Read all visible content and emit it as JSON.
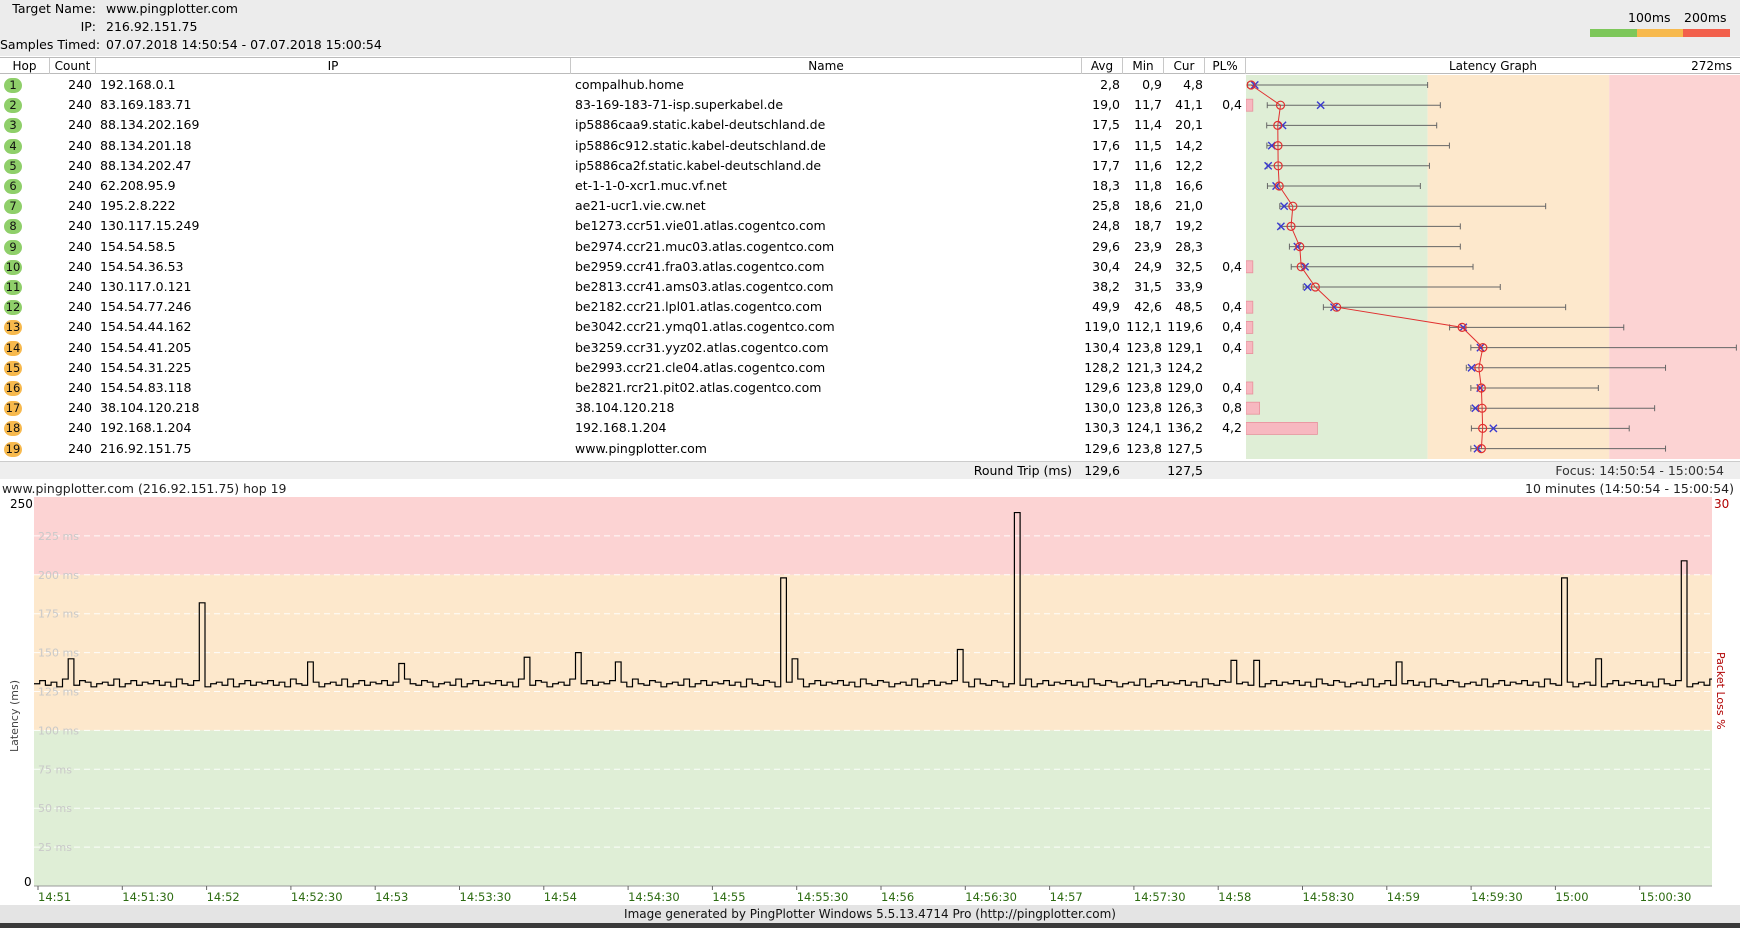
{
  "header": {
    "target_label": "Target Name:",
    "target_value": "www.pingplotter.com",
    "ip_label": "IP:",
    "ip_value": "216.92.151.75",
    "samples_label": "Samples Timed:",
    "samples_value": "07.07.2018 14:50:54 - 07.07.2018 15:00:54",
    "legend": {
      "label_100": "100ms",
      "label_200": "200ms",
      "colors": [
        "#7dc75a",
        "#f7b94d",
        "#f2604c"
      ]
    }
  },
  "table": {
    "columns": {
      "hop": "Hop",
      "count": "Count",
      "ip": "IP",
      "name": "Name",
      "avg": "Avg",
      "min": "Min",
      "cur": "Cur",
      "pl": "PL%",
      "graph": "Latency Graph"
    },
    "graph_max_label": "272ms",
    "graph_max_ms": 272,
    "graph_zones": {
      "green_until_ms": 100,
      "orange_until_ms": 200,
      "green": "#dfeed6",
      "orange": "#fde8cc",
      "red": "#fcd3d3"
    },
    "hops": [
      {
        "hop": "1",
        "count": "240",
        "ip": "192.168.0.1",
        "name": "compalhub.home",
        "avg": "2,8",
        "min": "0,9",
        "cur": "4,8",
        "pl": "",
        "max_ms": 100,
        "status": "green"
      },
      {
        "hop": "2",
        "count": "240",
        "ip": "83.169.183.71",
        "name": "83-169-183-71-isp.superkabel.de",
        "avg": "19,0",
        "min": "11,7",
        "cur": "41,1",
        "pl": "0,4",
        "max_ms": 107,
        "status": "green"
      },
      {
        "hop": "3",
        "count": "240",
        "ip": "88.134.202.169",
        "name": "ip5886caa9.static.kabel-deutschland.de",
        "avg": "17,5",
        "min": "11,4",
        "cur": "20,1",
        "pl": "",
        "max_ms": 105,
        "status": "green"
      },
      {
        "hop": "4",
        "count": "240",
        "ip": "88.134.201.18",
        "name": "ip5886c912.static.kabel-deutschland.de",
        "avg": "17,6",
        "min": "11,5",
        "cur": "14,2",
        "pl": "",
        "max_ms": 112,
        "status": "green"
      },
      {
        "hop": "5",
        "count": "240",
        "ip": "88.134.202.47",
        "name": "ip5886ca2f.static.kabel-deutschland.de",
        "avg": "17,7",
        "min": "11,6",
        "cur": "12,2",
        "pl": "",
        "max_ms": 101,
        "status": "green"
      },
      {
        "hop": "6",
        "count": "240",
        "ip": "62.208.95.9",
        "name": "et-1-1-0-xcr1.muc.vf.net",
        "avg": "18,3",
        "min": "11,8",
        "cur": "16,6",
        "pl": "",
        "max_ms": 96,
        "status": "green"
      },
      {
        "hop": "7",
        "count": "240",
        "ip": "195.2.8.222",
        "name": "ae21-ucr1.vie.cw.net",
        "avg": "25,8",
        "min": "18,6",
        "cur": "21,0",
        "pl": "",
        "max_ms": 165,
        "status": "green"
      },
      {
        "hop": "8",
        "count": "240",
        "ip": "130.117.15.249",
        "name": "be1273.ccr51.vie01.atlas.cogentco.com",
        "avg": "24,8",
        "min": "18,7",
        "cur": "19,2",
        "pl": "",
        "max_ms": 118,
        "status": "green"
      },
      {
        "hop": "9",
        "count": "240",
        "ip": "154.54.58.5",
        "name": "be2974.ccr21.muc03.atlas.cogentco.com",
        "avg": "29,6",
        "min": "23,9",
        "cur": "28,3",
        "pl": "",
        "max_ms": 118,
        "status": "green"
      },
      {
        "hop": "10",
        "count": "240",
        "ip": "154.54.36.53",
        "name": "be2959.ccr41.fra03.atlas.cogentco.com",
        "avg": "30,4",
        "min": "24,9",
        "cur": "32,5",
        "pl": "0,4",
        "max_ms": 125,
        "status": "green"
      },
      {
        "hop": "11",
        "count": "240",
        "ip": "130.117.0.121",
        "name": "be2813.ccr41.ams03.atlas.cogentco.com",
        "avg": "38,2",
        "min": "31,5",
        "cur": "33,9",
        "pl": "",
        "max_ms": 140,
        "status": "green"
      },
      {
        "hop": "12",
        "count": "240",
        "ip": "154.54.77.246",
        "name": "be2182.ccr21.lpl01.atlas.cogentco.com",
        "avg": "49,9",
        "min": "42,6",
        "cur": "48,5",
        "pl": "0,4",
        "max_ms": 176,
        "status": "green"
      },
      {
        "hop": "13",
        "count": "240",
        "ip": "154.54.44.162",
        "name": "be3042.ccr21.ymq01.atlas.cogentco.com",
        "avg": "119,0",
        "min": "112,1",
        "cur": "119,6",
        "pl": "0,4",
        "max_ms": 208,
        "status": "orange"
      },
      {
        "hop": "14",
        "count": "240",
        "ip": "154.54.41.205",
        "name": "be3259.ccr31.yyz02.atlas.cogentco.com",
        "avg": "130,4",
        "min": "123,8",
        "cur": "129,1",
        "pl": "0,4",
        "max_ms": 270,
        "status": "orange"
      },
      {
        "hop": "15",
        "count": "240",
        "ip": "154.54.31.225",
        "name": "be2993.ccr21.cle04.atlas.cogentco.com",
        "avg": "128,2",
        "min": "121,3",
        "cur": "124,2",
        "pl": "",
        "max_ms": 231,
        "status": "orange"
      },
      {
        "hop": "16",
        "count": "240",
        "ip": "154.54.83.118",
        "name": "be2821.rcr21.pit02.atlas.cogentco.com",
        "avg": "129,6",
        "min": "123,8",
        "cur": "129,0",
        "pl": "0,4",
        "max_ms": 194,
        "status": "orange"
      },
      {
        "hop": "17",
        "count": "240",
        "ip": "38.104.120.218",
        "name": "38.104.120.218",
        "avg": "130,0",
        "min": "123,8",
        "cur": "126,3",
        "pl": "0,8",
        "max_ms": 225,
        "status": "orange"
      },
      {
        "hop": "18",
        "count": "240",
        "ip": "192.168.1.204",
        "name": "192.168.1.204",
        "avg": "130,3",
        "min": "124,1",
        "cur": "136,2",
        "pl": "4,2",
        "max_ms": 211,
        "status": "orange"
      },
      {
        "hop": "19",
        "count": "240",
        "ip": "216.92.151.75",
        "name": "www.pingplotter.com",
        "avg": "129,6",
        "min": "123,8",
        "cur": "127,5",
        "pl": "",
        "max_ms": 231,
        "status": "orange"
      }
    ],
    "status_colors": {
      "green": "#8fcf6a",
      "orange": "#f7b94d"
    }
  },
  "round_trip": {
    "label": "Round Trip (ms)",
    "avg": "129,6",
    "cur": "127,5",
    "focus": "Focus: 14:50:54 - 15:00:54"
  },
  "timeline": {
    "target_info": "www.pingplotter.com (216.92.151.75) hop 19",
    "range_info": "10 minutes (14:50:54 - 15:00:54)",
    "y_max_label": "250",
    "y_min_label": "0",
    "loss_max_label": "30",
    "y_axis_title": "Latency (ms)",
    "loss_axis_title": "Packet Loss %",
    "gridline_labels": [
      "225 ms",
      "200 ms",
      "175 ms",
      "150 ms",
      "125 ms",
      "100 ms",
      "75 ms",
      "50 ms",
      "25 ms"
    ],
    "x_labels": [
      "14:51",
      "14:51:30",
      "14:52",
      "14:52:30",
      "14:53",
      "14:53:30",
      "14:54",
      "14:54:30",
      "14:55",
      "14:55:30",
      "14:56",
      "14:56:30",
      "14:57",
      "14:57:30",
      "14:58",
      "14:58:30",
      "14:59",
      "14:59:30",
      "15:00",
      "15:00:30"
    ],
    "zone_colors": {
      "green": "#dfeed6",
      "orange": "#fde8cc",
      "red": "#fcd3d3"
    }
  },
  "chart_data": {
    "type": "line",
    "title": "",
    "xlabel": "",
    "ylabel": "Latency (ms)",
    "ylim": [
      0,
      250
    ],
    "x_range": [
      "14:50:54",
      "15:00:54"
    ],
    "spikes": [
      {
        "t_fraction": 0.028,
        "ms": 146
      },
      {
        "t_fraction": 0.134,
        "ms": 182
      },
      {
        "t_fraction": 0.224,
        "ms": 144
      },
      {
        "t_fraction": 0.298,
        "ms": 143
      },
      {
        "t_fraction": 0.402,
        "ms": 147
      },
      {
        "t_fraction": 0.442,
        "ms": 150
      },
      {
        "t_fraction": 0.476,
        "ms": 144
      },
      {
        "t_fraction": 0.61,
        "ms": 198
      },
      {
        "t_fraction": 0.622,
        "ms": 146
      },
      {
        "t_fraction": 0.756,
        "ms": 152
      },
      {
        "t_fraction": 0.801,
        "ms": 240
      },
      {
        "t_fraction": 0.98,
        "ms": 145
      },
      {
        "t_fraction": 1.0,
        "ms": 145
      },
      {
        "t_fraction": 1.115,
        "ms": 144
      },
      {
        "t_fraction": 1.253,
        "ms": 198
      },
      {
        "t_fraction": 1.28,
        "ms": 146
      },
      {
        "t_fraction": 1.35,
        "ms": 209
      }
    ],
    "baseline_ms": 130
  },
  "footer": {
    "text": "Image generated by PingPlotter Windows 5.5.13.4714 Pro (http://pingplotter.com)"
  }
}
